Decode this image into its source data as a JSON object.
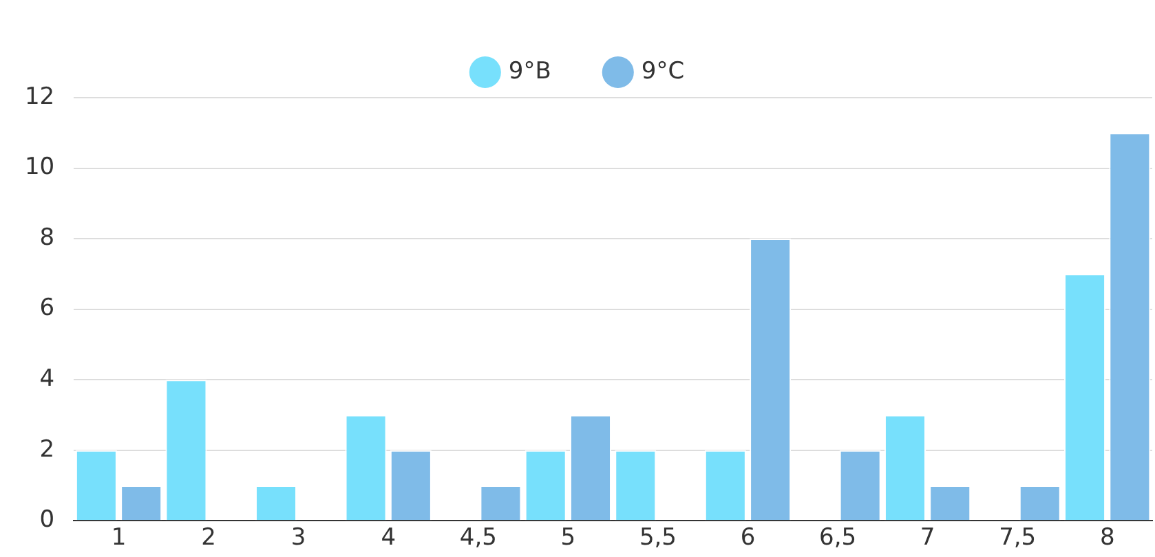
{
  "chart_data": {
    "type": "bar",
    "categories": [
      "1",
      "2",
      "3",
      "4",
      "4,5",
      "5",
      "5,5",
      "6",
      "6,5",
      "7",
      "7,5",
      "8"
    ],
    "series": [
      {
        "name": "9°B",
        "color": "#77e0fc",
        "values": [
          2,
          4,
          1,
          3,
          0,
          2,
          2,
          2,
          0,
          3,
          0,
          7
        ]
      },
      {
        "name": "9°C",
        "color": "#7fbbe8",
        "values": [
          1,
          0,
          0,
          2,
          1,
          3,
          0,
          8,
          2,
          1,
          1,
          11
        ]
      }
    ],
    "ylim": [
      0,
      12
    ],
    "yticks": [
      0,
      2,
      4,
      6,
      8,
      10,
      12
    ],
    "grid": "y",
    "legend": "top"
  }
}
